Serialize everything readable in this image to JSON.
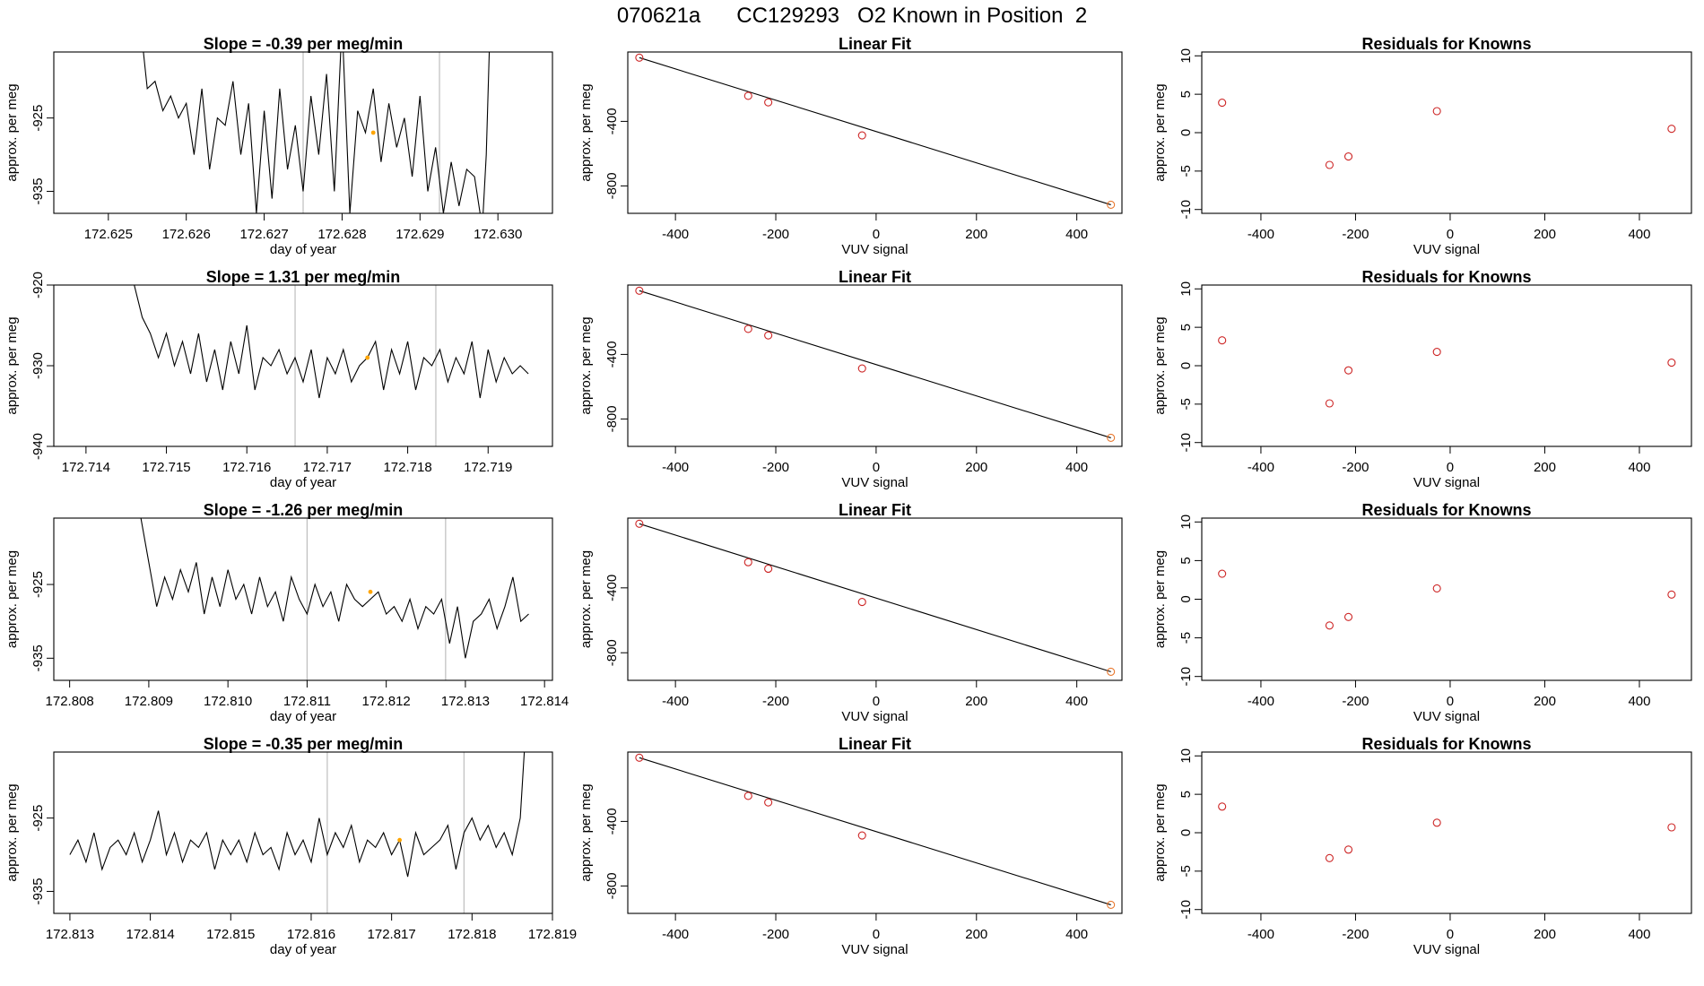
{
  "page": {
    "title": "070621a      CC129293   O2 Known in Position  2"
  },
  "chart_data": [
    {
      "type": "line",
      "panel": "time-series-1",
      "title": "Slope =  -0.39  per meg/min",
      "xlabel": "day of year",
      "ylabel": "approx. per meg",
      "xlim": [
        172.6243,
        172.6307
      ],
      "ylim": [
        -938,
        -916
      ],
      "xticks": [
        172.625,
        172.626,
        172.627,
        172.628,
        172.629,
        172.63
      ],
      "xtick_labels": [
        "172.625",
        "172.626",
        "172.627",
        "172.628",
        "172.629",
        "172.630"
      ],
      "yticks": [
        -925,
        -935
      ],
      "ytick_labels": [
        "-925",
        "-935"
      ],
      "vlines": [
        172.6275,
        172.62925
      ],
      "marker": {
        "x": 172.6284,
        "y": -927,
        "color": "#FFA500"
      },
      "series": [
        {
          "name": "trace",
          "x": [
            172.62535,
            172.62545,
            172.6255,
            172.6256,
            172.6257,
            172.6258,
            172.6259,
            172.626,
            172.6261,
            172.6262,
            172.6263,
            172.6264,
            172.6265,
            172.6266,
            172.6267,
            172.6268,
            172.6269,
            172.627,
            172.6271,
            172.6272,
            172.6273,
            172.6274,
            172.6275,
            172.6276,
            172.6277,
            172.6278,
            172.6279,
            172.628,
            172.6281,
            172.6282,
            172.6283,
            172.6284,
            172.6285,
            172.6286,
            172.6287,
            172.6288,
            172.6289,
            172.629,
            172.6291,
            172.6292,
            172.6293,
            172.6294,
            172.6295,
            172.6296,
            172.6297,
            172.6298,
            172.62985,
            172.6299
          ],
          "y": [
            -912,
            -916,
            -921,
            -920,
            -924,
            -922,
            -925,
            -923,
            -930,
            -921,
            -932,
            -925,
            -926,
            -920,
            -930,
            -923,
            -938,
            -924,
            -936,
            -921,
            -932,
            -926,
            -935,
            -922,
            -930,
            -919,
            -935,
            -912,
            -938,
            -924,
            -927,
            -921,
            -931,
            -923,
            -929,
            -925,
            -933,
            -922,
            -935,
            -929,
            -938,
            -931,
            -937,
            -932,
            -933,
            -940,
            -930,
            -912
          ]
        }
      ]
    },
    {
      "type": "line",
      "panel": "time-series-2",
      "title": "Slope =  1.31  per meg/min",
      "xlabel": "day of year",
      "ylabel": "approx. per meg",
      "xlim": [
        172.7136,
        172.7198
      ],
      "ylim": [
        -940,
        -920
      ],
      "xticks": [
        172.714,
        172.715,
        172.716,
        172.717,
        172.718,
        172.719
      ],
      "xtick_labels": [
        "172.714",
        "172.715",
        "172.716",
        "172.717",
        "172.718",
        "172.719"
      ],
      "yticks": [
        -920,
        -930,
        -940
      ],
      "ytick_labels": [
        "-920",
        "-930",
        "-940"
      ],
      "vlines": [
        172.7166,
        172.71835
      ],
      "marker": {
        "x": 172.7175,
        "y": -929,
        "color": "#FFA500"
      },
      "series": [
        {
          "name": "trace",
          "x": [
            172.7145,
            172.7146,
            172.7147,
            172.7148,
            172.7149,
            172.715,
            172.7151,
            172.7152,
            172.7153,
            172.7154,
            172.7155,
            172.7156,
            172.7157,
            172.7158,
            172.7159,
            172.716,
            172.7161,
            172.7162,
            172.7163,
            172.7164,
            172.7165,
            172.7166,
            172.7167,
            172.7168,
            172.7169,
            172.717,
            172.7171,
            172.7172,
            172.7173,
            172.7174,
            172.7175,
            172.7176,
            172.7177,
            172.7178,
            172.7179,
            172.718,
            172.7181,
            172.7182,
            172.7183,
            172.7184,
            172.7185,
            172.7186,
            172.7187,
            172.7188,
            172.7189,
            172.719,
            172.7191,
            172.7192,
            172.7193,
            172.7194,
            172.7195
          ],
          "y": [
            -918,
            -920,
            -924,
            -926,
            -929,
            -926,
            -930,
            -927,
            -931,
            -926,
            -932,
            -928,
            -933,
            -927,
            -931,
            -925,
            -933,
            -929,
            -930,
            -928,
            -931,
            -929,
            -932,
            -928,
            -934,
            -929,
            -931,
            -928,
            -932,
            -930,
            -929,
            -927,
            -933,
            -928,
            -931,
            -927,
            -933,
            -929,
            -930,
            -928,
            -932,
            -929,
            -931,
            -927,
            -934,
            -928,
            -932,
            -929,
            -931,
            -930,
            -931
          ]
        }
      ]
    },
    {
      "type": "line",
      "panel": "time-series-3",
      "title": "Slope =  -1.26  per meg/min",
      "xlabel": "day of year",
      "ylabel": "approx. per meg",
      "xlim": [
        172.8078,
        172.8141
      ],
      "ylim": [
        -938,
        -916
      ],
      "xticks": [
        172.808,
        172.809,
        172.81,
        172.811,
        172.812,
        172.813,
        172.814
      ],
      "xtick_labels": [
        "172.808",
        "172.809",
        "172.810",
        "172.811",
        "172.812",
        "172.813",
        "172.814"
      ],
      "yticks": [
        -925,
        -935
      ],
      "ytick_labels": [
        "-925",
        "-935"
      ],
      "vlines": [
        172.811,
        172.81275
      ],
      "marker": {
        "x": 172.8118,
        "y": -926,
        "color": "#FFA500"
      },
      "series": [
        {
          "name": "trace",
          "x": [
            172.8089,
            172.809,
            172.8091,
            172.8092,
            172.8093,
            172.8094,
            172.8095,
            172.8096,
            172.8097,
            172.8098,
            172.8099,
            172.81,
            172.8101,
            172.8102,
            172.8103,
            172.8104,
            172.8105,
            172.8106,
            172.8107,
            172.8108,
            172.8109,
            172.811,
            172.8111,
            172.8112,
            172.8113,
            172.8114,
            172.8115,
            172.8116,
            172.8117,
            172.8118,
            172.8119,
            172.812,
            172.8121,
            172.8122,
            172.8123,
            172.8124,
            172.8125,
            172.8126,
            172.8127,
            172.8128,
            172.8129,
            172.813,
            172.8131,
            172.8132,
            172.8133,
            172.8134,
            172.8135,
            172.8136,
            172.8137,
            172.8138
          ],
          "y": [
            -916,
            -922,
            -928,
            -924,
            -927,
            -923,
            -926,
            -922,
            -929,
            -924,
            -928,
            -923,
            -927,
            -925,
            -929,
            -924,
            -928,
            -926,
            -930,
            -924,
            -927,
            -929,
            -925,
            -928,
            -926,
            -930,
            -925,
            -927,
            -928,
            -927,
            -926,
            -929,
            -928,
            -930,
            -927,
            -931,
            -928,
            -929,
            -927,
            -933,
            -928,
            -935,
            -930,
            -929,
            -927,
            -931,
            -928,
            -924,
            -930,
            -929
          ]
        }
      ]
    },
    {
      "type": "line",
      "panel": "time-series-4",
      "title": "Slope =  -0.35  per meg/min",
      "xlabel": "day of year",
      "ylabel": "approx. per meg",
      "xlim": [
        172.8128,
        172.819
      ],
      "ylim": [
        -938,
        -916
      ],
      "xticks": [
        172.813,
        172.814,
        172.815,
        172.816,
        172.817,
        172.818,
        172.819
      ],
      "xtick_labels": [
        "172.813",
        "172.814",
        "172.815",
        "172.816",
        "172.817",
        "172.818",
        "172.819"
      ],
      "yticks": [
        -925,
        -935
      ],
      "ytick_labels": [
        "-925",
        "-935"
      ],
      "vlines": [
        172.8162,
        172.8179
      ],
      "marker": {
        "x": 172.8171,
        "y": -928,
        "color": "#FFA500"
      },
      "series": [
        {
          "name": "trace",
          "x": [
            172.813,
            172.8131,
            172.8132,
            172.8133,
            172.8134,
            172.8135,
            172.8136,
            172.8137,
            172.8138,
            172.8139,
            172.814,
            172.8141,
            172.8142,
            172.8143,
            172.8144,
            172.8145,
            172.8146,
            172.8147,
            172.8148,
            172.8149,
            172.815,
            172.8151,
            172.8152,
            172.8153,
            172.8154,
            172.8155,
            172.8156,
            172.8157,
            172.8158,
            172.8159,
            172.816,
            172.8161,
            172.8162,
            172.8163,
            172.8164,
            172.8165,
            172.8166,
            172.8167,
            172.8168,
            172.8169,
            172.817,
            172.8171,
            172.8172,
            172.8173,
            172.8174,
            172.8175,
            172.8176,
            172.8177,
            172.8178,
            172.8179,
            172.818,
            172.8181,
            172.8182,
            172.8183,
            172.8184,
            172.8185,
            172.8186,
            172.81865
          ],
          "y": [
            -930,
            -928,
            -931,
            -927,
            -932,
            -929,
            -928,
            -930,
            -927,
            -931,
            -928,
            -924,
            -930,
            -927,
            -931,
            -928,
            -929,
            -927,
            -932,
            -928,
            -930,
            -928,
            -931,
            -927,
            -930,
            -929,
            -932,
            -927,
            -930,
            -928,
            -931,
            -925,
            -930,
            -927,
            -929,
            -926,
            -931,
            -928,
            -929,
            -927,
            -930,
            -928,
            -933,
            -927,
            -930,
            -929,
            -928,
            -926,
            -932,
            -927,
            -925,
            -928,
            -926,
            -929,
            -927,
            -930,
            -925,
            -916
          ]
        }
      ]
    },
    {
      "type": "scatter",
      "panel": "linear-fit-1",
      "title": "Linear Fit",
      "xlabel": "VUV signal",
      "ylabel": "approx. per meg",
      "xlim": [
        -495,
        490
      ],
      "ylim": [
        -970,
        30
      ],
      "xticks": [
        -400,
        -200,
        0,
        200,
        400
      ],
      "xtick_labels": [
        "-400",
        "-200",
        "0",
        "200",
        "400"
      ],
      "yticks": [
        -400,
        -800
      ],
      "ytick_labels": [
        "-400",
        "-800"
      ],
      "x": [
        -472,
        -255,
        -215,
        -28,
        468
      ],
      "y": [
        -5,
        -242,
        -282,
        -487,
        -917
      ],
      "fit_line": {
        "x": [
          -472,
          468
        ],
        "y": [
          -5,
          -917
        ]
      }
    },
    {
      "type": "scatter",
      "panel": "residuals-1",
      "title": "Residuals for Knowns",
      "xlabel": "VUV signal",
      "ylabel": "approx. per meg",
      "xlim": [
        -525,
        510
      ],
      "ylim": [
        -10.5,
        10.5
      ],
      "xticks": [
        -400,
        -200,
        0,
        200,
        400
      ],
      "xtick_labels": [
        "-400",
        "-200",
        "0",
        "200",
        "400"
      ],
      "yticks": [
        10,
        5,
        0,
        -5,
        -10
      ],
      "ytick_labels": [
        "10",
        "5",
        "0",
        "-5",
        "-10"
      ],
      "x": [
        -482,
        -255,
        -215,
        -28,
        468
      ],
      "y": [
        3.9,
        -4.2,
        -3.1,
        2.8,
        0.5
      ]
    },
    {
      "type": "scatter",
      "panel": "linear-fit-2",
      "title": "Linear Fit",
      "xlabel": "VUV signal",
      "ylabel": "approx. per meg",
      "xlim": [
        -495,
        490
      ],
      "ylim": [
        -970,
        30
      ],
      "xticks": [
        -400,
        -200,
        0,
        200,
        400
      ],
      "xtick_labels": [
        "-400",
        "-200",
        "0",
        "200",
        "400"
      ],
      "yticks": [
        -400,
        -800
      ],
      "ytick_labels": [
        "-400",
        "-800"
      ],
      "x": [
        -472,
        -255,
        -215,
        -28,
        468
      ],
      "y": [
        -5,
        -242,
        -282,
        -487,
        -917
      ],
      "fit_line": {
        "x": [
          -472,
          468
        ],
        "y": [
          -5,
          -917
        ]
      }
    },
    {
      "type": "scatter",
      "panel": "residuals-2",
      "title": "Residuals for Knowns",
      "xlabel": "VUV signal",
      "ylabel": "approx. per meg",
      "xlim": [
        -525,
        510
      ],
      "ylim": [
        -10.5,
        10.5
      ],
      "xticks": [
        -400,
        -200,
        0,
        200,
        400
      ],
      "xtick_labels": [
        "-400",
        "-200",
        "0",
        "200",
        "400"
      ],
      "yticks": [
        10,
        5,
        0,
        -5,
        -10
      ],
      "ytick_labels": [
        "10",
        "5",
        "0",
        "-5",
        "-10"
      ],
      "x": [
        -482,
        -255,
        -215,
        -28,
        468
      ],
      "y": [
        3.3,
        -4.9,
        -0.6,
        1.8,
        0.4
      ]
    },
    {
      "type": "scatter",
      "panel": "linear-fit-3",
      "title": "Linear Fit",
      "xlabel": "VUV signal",
      "ylabel": "approx. per meg",
      "xlim": [
        -495,
        490
      ],
      "ylim": [
        -970,
        30
      ],
      "xticks": [
        -400,
        -200,
        0,
        200,
        400
      ],
      "xtick_labels": [
        "-400",
        "-200",
        "0",
        "200",
        "400"
      ],
      "yticks": [
        -400,
        -800
      ],
      "ytick_labels": [
        "-400",
        "-800"
      ],
      "x": [
        -472,
        -255,
        -215,
        -28,
        468
      ],
      "y": [
        -5,
        -242,
        -282,
        -487,
        -917
      ],
      "fit_line": {
        "x": [
          -472,
          468
        ],
        "y": [
          -5,
          -917
        ]
      }
    },
    {
      "type": "scatter",
      "panel": "residuals-3",
      "title": "Residuals for Knowns",
      "xlabel": "VUV signal",
      "ylabel": "approx. per meg",
      "xlim": [
        -525,
        510
      ],
      "ylim": [
        -10.5,
        10.5
      ],
      "xticks": [
        -400,
        -200,
        0,
        200,
        400
      ],
      "xtick_labels": [
        "-400",
        "-200",
        "0",
        "200",
        "400"
      ],
      "yticks": [
        10,
        5,
        0,
        -5,
        -10
      ],
      "ytick_labels": [
        "10",
        "5",
        "0",
        "-5",
        "-10"
      ],
      "x": [
        -482,
        -255,
        -215,
        -28,
        468
      ],
      "y": [
        3.3,
        -3.4,
        -2.3,
        1.4,
        0.6
      ]
    },
    {
      "type": "scatter",
      "panel": "linear-fit-4",
      "title": "Linear Fit",
      "xlabel": "VUV signal",
      "ylabel": "approx. per meg",
      "xlim": [
        -495,
        490
      ],
      "ylim": [
        -970,
        30
      ],
      "xticks": [
        -400,
        -200,
        0,
        200,
        400
      ],
      "xtick_labels": [
        "-400",
        "-200",
        "0",
        "200",
        "400"
      ],
      "yticks": [
        -400,
        -800
      ],
      "ytick_labels": [
        "-400",
        "-800"
      ],
      "x": [
        -472,
        -255,
        -215,
        -28,
        468
      ],
      "y": [
        -5,
        -242,
        -282,
        -487,
        -917
      ],
      "fit_line": {
        "x": [
          -472,
          468
        ],
        "y": [
          -5,
          -917
        ]
      }
    },
    {
      "type": "scatter",
      "panel": "residuals-4",
      "title": "Residuals for Knowns",
      "xlabel": "VUV signal",
      "ylabel": "approx. per meg",
      "xlim": [
        -525,
        510
      ],
      "ylim": [
        -10.5,
        10.5
      ],
      "xticks": [
        -400,
        -200,
        0,
        200,
        400
      ],
      "xtick_labels": [
        "-400",
        "-200",
        "0",
        "200",
        "400"
      ],
      "yticks": [
        10,
        5,
        0,
        -5,
        -10
      ],
      "ytick_labels": [
        "10",
        "5",
        "0",
        "-5",
        "-10"
      ],
      "x": [
        -482,
        -255,
        -215,
        -28,
        468
      ],
      "y": [
        3.4,
        -3.3,
        -2.2,
        1.3,
        0.7
      ]
    }
  ],
  "colors": {
    "trace": "#000000",
    "axis": "#000000",
    "vline": "#BEBEBE",
    "marker": "#FFA500",
    "point": "#CD2626",
    "fit_line": "#000000"
  }
}
